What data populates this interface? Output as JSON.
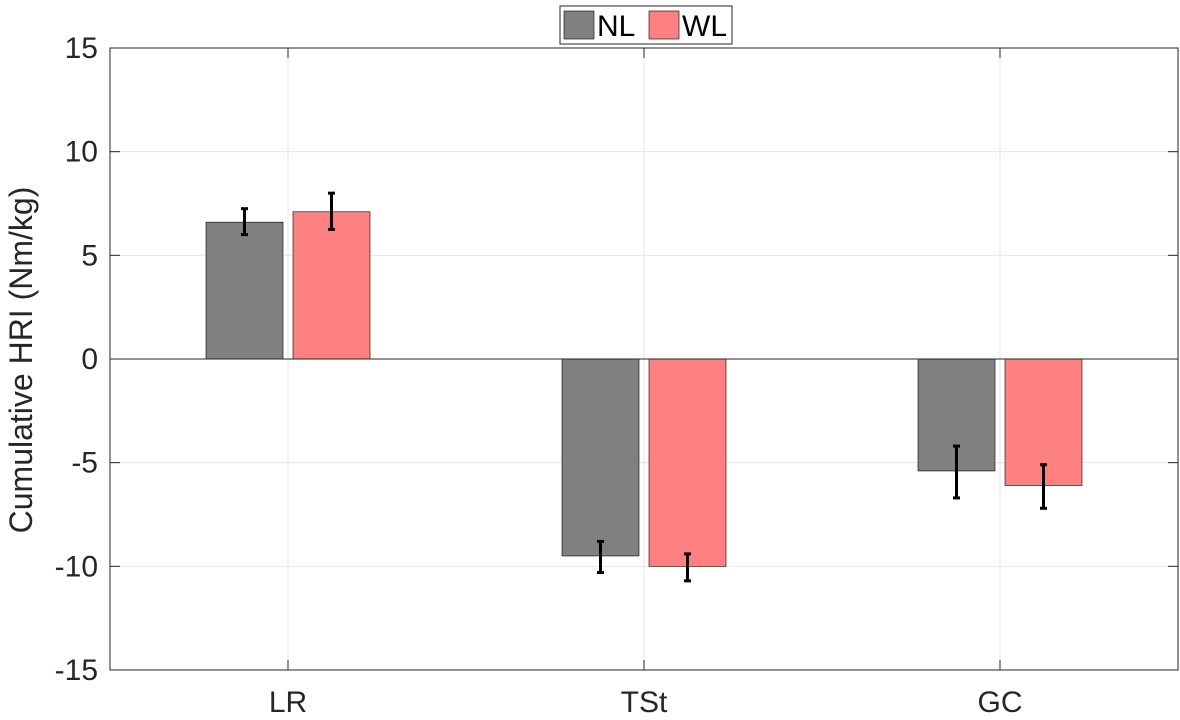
{
  "chart_data": {
    "type": "bar",
    "categories": [
      "LR",
      "TSt",
      "GC"
    ],
    "series": [
      {
        "name": "NL",
        "color": "#808080",
        "values": [
          6.6,
          -9.5,
          -5.4
        ],
        "error": [
          [
            6.0,
            7.25
          ],
          [
            -10.3,
            -8.8
          ],
          [
            -6.7,
            -4.2
          ]
        ]
      },
      {
        "name": "WL",
        "color": "#ff8080",
        "values": [
          7.1,
          -10.0,
          -6.1
        ],
        "error": [
          [
            6.25,
            8.0
          ],
          [
            -10.7,
            -9.4
          ],
          [
            -7.2,
            -5.1
          ]
        ]
      }
    ],
    "ylabel": "Cumulative HRI (Nm/kg)",
    "xlabel": "",
    "ylim": [
      -15,
      15
    ],
    "yticks": [
      -15,
      -10,
      -5,
      0,
      5,
      10,
      15
    ],
    "ytick_labels": [
      "-15",
      "-10",
      "-5",
      "0",
      "5",
      "10",
      "15"
    ],
    "grid": true,
    "legend_position": "top-center",
    "legend_orientation": "horizontal"
  }
}
